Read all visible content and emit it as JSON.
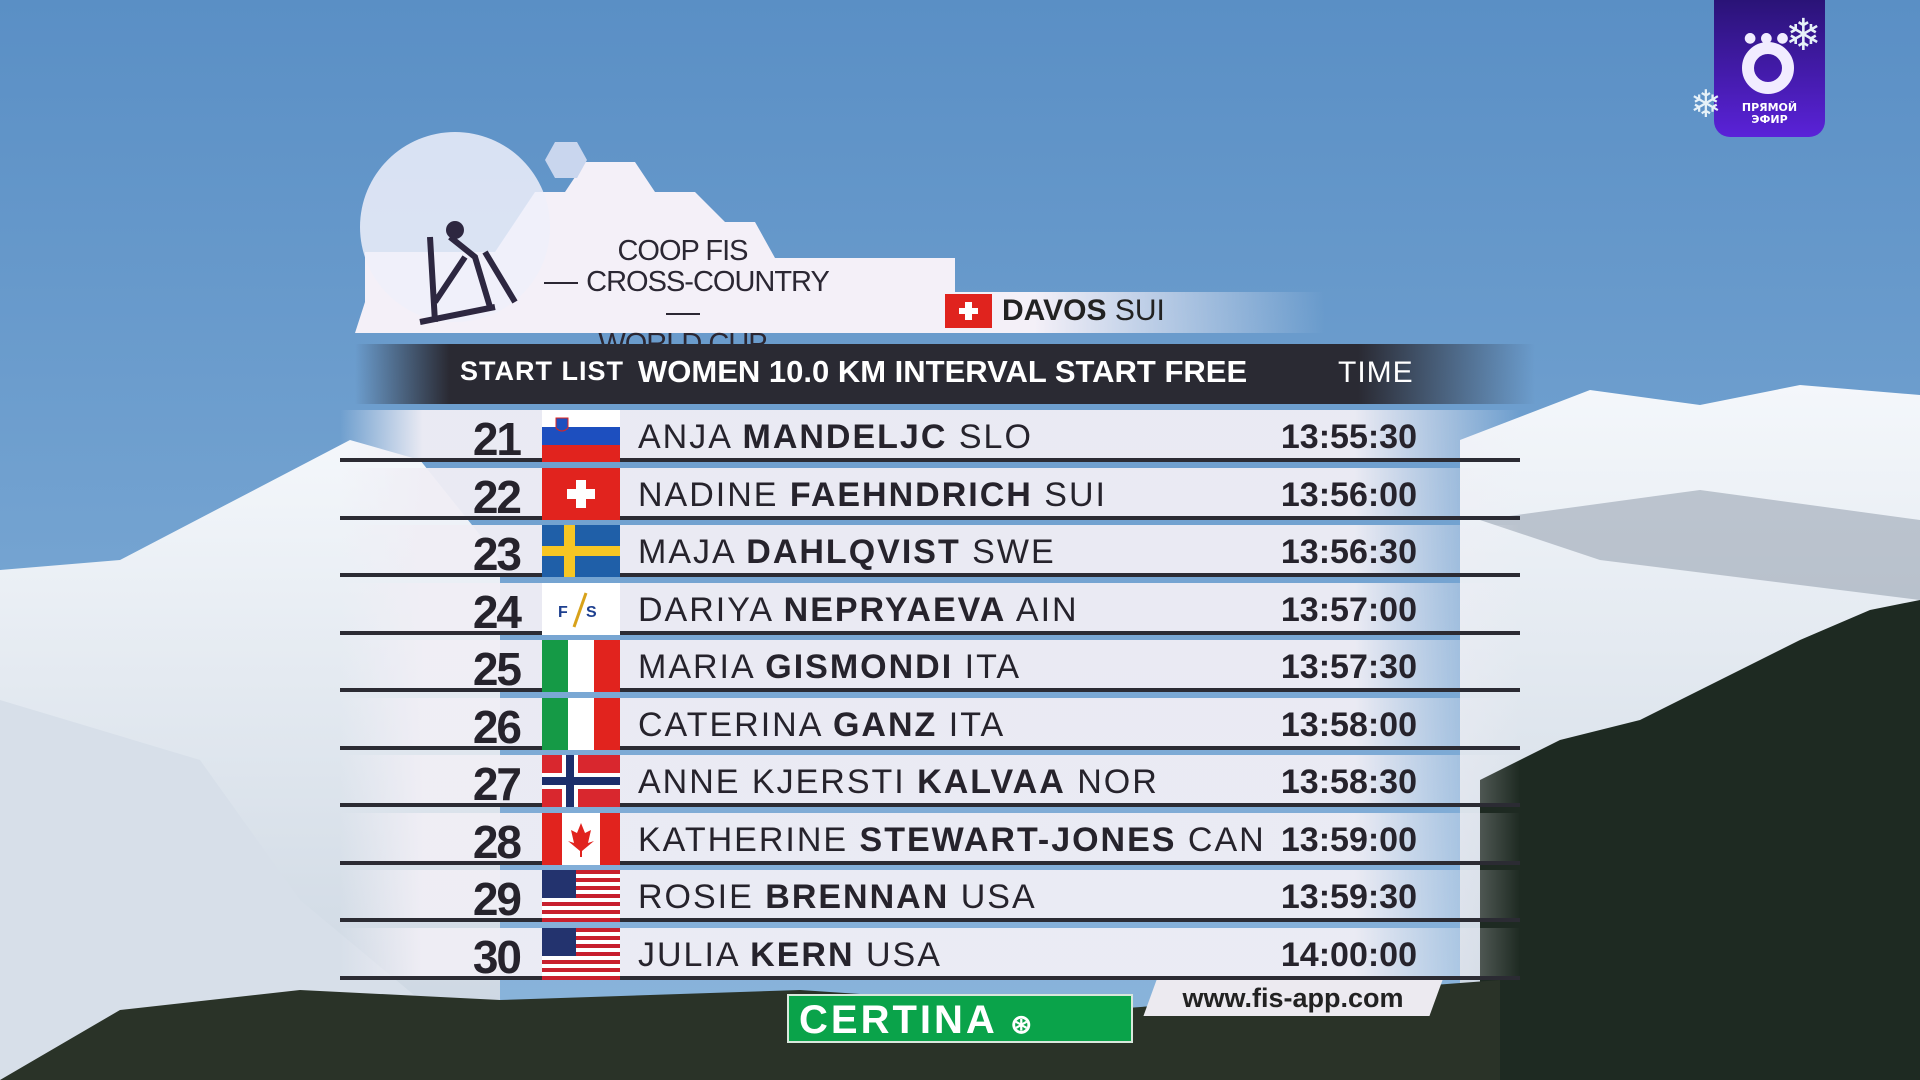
{
  "channel_logo": {
    "line1": "ПРЯМОЙ",
    "line2": "ЭФИР",
    "color": "#3d18a8"
  },
  "event": {
    "title_line1": "COOP FIS",
    "title_line2": "CROSS-COUNTRY",
    "title_line3": "WORLD CUP",
    "venue_city": "DAVOS",
    "venue_country": "SUI"
  },
  "header": {
    "label": "START LIST",
    "race": "WOMEN 10.0 KM INTERVAL START FREE",
    "time_col": "TIME"
  },
  "rows": [
    {
      "bib": "21",
      "first": "ANJA",
      "last": "MANDELJC",
      "nation": "SLO",
      "flag": "slo",
      "time": "13:55:30"
    },
    {
      "bib": "22",
      "first": "NADINE",
      "last": "FAEHNDRICH",
      "nation": "SUI",
      "flag": "sui",
      "time": "13:56:00"
    },
    {
      "bib": "23",
      "first": "MAJA",
      "last": "DAHLQVIST",
      "nation": "SWE",
      "flag": "swe",
      "time": "13:56:30"
    },
    {
      "bib": "24",
      "first": "DARIYA",
      "last": "NEPRYAEVA",
      "nation": "AIN",
      "flag": "fis",
      "time": "13:57:00"
    },
    {
      "bib": "25",
      "first": "MARIA",
      "last": "GISMONDI",
      "nation": "ITA",
      "flag": "ita",
      "time": "13:57:30"
    },
    {
      "bib": "26",
      "first": "CATERINA",
      "last": "GANZ",
      "nation": "ITA",
      "flag": "ita",
      "time": "13:58:00"
    },
    {
      "bib": "27",
      "first": "ANNE KJERSTI",
      "last": "KALVAA",
      "nation": "NOR",
      "flag": "nor",
      "time": "13:58:30"
    },
    {
      "bib": "28",
      "first": "KATHERINE",
      "last": "STEWART-JONES",
      "nation": "CAN",
      "flag": "can",
      "time": "13:59:00"
    },
    {
      "bib": "29",
      "first": "ROSIE",
      "last": "BRENNAN",
      "nation": "USA",
      "flag": "usa",
      "time": "13:59:30"
    },
    {
      "bib": "30",
      "first": "JULIA",
      "last": "KERN",
      "nation": "USA",
      "flag": "usa",
      "time": "14:00:00"
    }
  ],
  "sponsor": {
    "name": "CERTINA",
    "url": "www.fis-app.com",
    "color": "#0aa34a"
  }
}
